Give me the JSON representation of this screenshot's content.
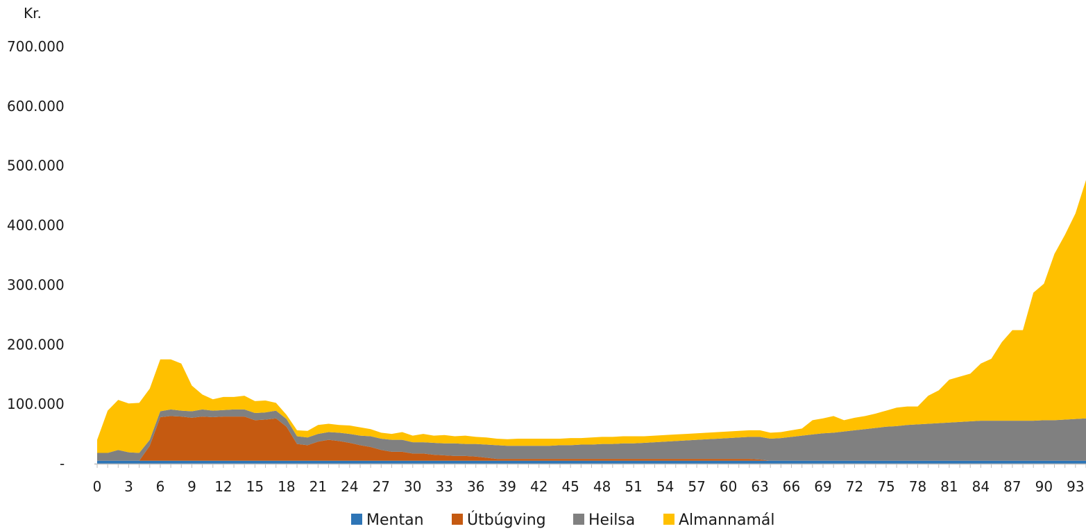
{
  "chart_data": {
    "type": "area",
    "stacked": true,
    "y_unit": "Kr.",
    "xlim": [
      0,
      94
    ],
    "ylim": [
      0,
      700000
    ],
    "y_ticks": [
      0,
      100000,
      200000,
      300000,
      400000,
      500000,
      600000,
      700000
    ],
    "y_tick_labels": [
      "-",
      "100.000",
      "200.000",
      "300.000",
      "400.000",
      "500.000",
      "600.000",
      "700.000"
    ],
    "x_ticks": [
      0,
      3,
      6,
      9,
      12,
      15,
      18,
      21,
      24,
      27,
      30,
      33,
      36,
      39,
      42,
      45,
      48,
      51,
      54,
      57,
      60,
      63,
      66,
      69,
      72,
      75,
      78,
      81,
      84,
      87,
      90,
      93
    ],
    "x_tick_labels": [
      "0",
      "3",
      "6",
      "9",
      "12",
      "15",
      "18",
      "21",
      "24",
      "27",
      "30",
      "33",
      "36",
      "39",
      "42",
      "45",
      "48",
      "51",
      "54",
      "57",
      "60",
      "63",
      "66",
      "69",
      "72",
      "75",
      "78",
      "81",
      "84",
      "87",
      "90",
      "93"
    ],
    "grid": false,
    "legend_position": "bottom",
    "x": [
      0,
      1,
      2,
      3,
      4,
      5,
      6,
      7,
      8,
      9,
      10,
      11,
      12,
      13,
      14,
      15,
      16,
      17,
      18,
      19,
      20,
      21,
      22,
      23,
      24,
      25,
      26,
      27,
      28,
      29,
      30,
      31,
      32,
      33,
      34,
      35,
      36,
      37,
      38,
      39,
      40,
      41,
      42,
      43,
      44,
      45,
      46,
      47,
      48,
      49,
      50,
      51,
      52,
      53,
      54,
      55,
      56,
      57,
      58,
      59,
      60,
      61,
      62,
      63,
      64,
      65,
      66,
      67,
      68,
      69,
      70,
      71,
      72,
      73,
      74,
      75,
      76,
      77,
      78,
      79,
      80,
      81,
      82,
      83,
      84,
      85,
      86,
      87,
      88,
      89,
      90,
      91,
      92,
      93,
      94
    ],
    "series": [
      {
        "name": "Mentan",
        "color": "#2e75b6",
        "values": [
          5000,
          5000,
          5000,
          5000,
          5000,
          5000,
          5000,
          5000,
          5000,
          5000,
          5000,
          5000,
          5000,
          5000,
          5000,
          5000,
          5000,
          5000,
          5000,
          5000,
          5000,
          5000,
          5000,
          5000,
          5000,
          5000,
          5000,
          5000,
          5000,
          5000,
          5000,
          5000,
          5000,
          5000,
          5000,
          5000,
          5000,
          5000,
          5000,
          5000,
          5000,
          5000,
          5000,
          5000,
          5000,
          5000,
          5000,
          5000,
          5000,
          5000,
          5000,
          5000,
          5000,
          5000,
          5000,
          5000,
          5000,
          5000,
          5000,
          5000,
          5000,
          5000,
          5000,
          5000,
          5000,
          5000,
          5000,
          5000,
          5000,
          5000,
          5000,
          5000,
          5000,
          5000,
          5000,
          5000,
          5000,
          5000,
          5000,
          5000,
          5000,
          5000,
          5000,
          5000,
          5000,
          5000,
          5000,
          5000,
          5000,
          5000,
          5000,
          5000,
          5000,
          5000,
          5000
        ]
      },
      {
        "name": "Útbúgving",
        "color": "#c55a11",
        "values": [
          0,
          0,
          0,
          0,
          0,
          25000,
          73000,
          75000,
          74000,
          72000,
          74000,
          73000,
          74000,
          74000,
          74000,
          68000,
          69000,
          71000,
          57000,
          28000,
          26000,
          32000,
          35000,
          33000,
          30000,
          26000,
          23000,
          18000,
          15000,
          15000,
          12000,
          12000,
          10000,
          9000,
          8000,
          8000,
          7000,
          5000,
          3000,
          3000,
          3000,
          3000,
          3000,
          3000,
          3000,
          3000,
          3000,
          3000,
          3000,
          3000,
          3000,
          3000,
          3000,
          3000,
          3000,
          3000,
          3000,
          3000,
          3000,
          3000,
          3000,
          3000,
          3000,
          2000,
          0,
          0,
          0,
          0,
          0,
          0,
          0,
          0,
          0,
          0,
          0,
          0,
          0,
          0,
          0,
          0,
          0,
          0,
          0,
          0,
          0,
          0,
          0,
          0,
          0,
          0,
          0,
          0,
          0,
          0,
          0
        ]
      },
      {
        "name": "Heilsa",
        "color": "#808080",
        "values": [
          13000,
          13000,
          18000,
          14000,
          13000,
          10000,
          10000,
          11000,
          10000,
          11000,
          12000,
          11000,
          11000,
          12000,
          12000,
          12000,
          12000,
          13000,
          13000,
          13000,
          13000,
          13000,
          13000,
          14000,
          15000,
          16000,
          18000,
          19000,
          20000,
          20000,
          19000,
          19000,
          20000,
          20000,
          21000,
          20000,
          21000,
          22000,
          23000,
          22000,
          22000,
          22000,
          22000,
          22000,
          23000,
          23000,
          24000,
          24000,
          25000,
          25000,
          26000,
          26000,
          27000,
          28000,
          29000,
          30000,
          31000,
          32000,
          33000,
          34000,
          35000,
          36000,
          37000,
          38000,
          37000,
          38000,
          40000,
          42000,
          44000,
          46000,
          47000,
          49000,
          51000,
          53000,
          55000,
          57000,
          58000,
          60000,
          61000,
          62000,
          63000,
          64000,
          65000,
          66000,
          67000,
          67000,
          67000,
          67000,
          67000,
          67000,
          68000,
          68000,
          69000,
          70000,
          71000
        ]
      },
      {
        "name": "Almannamál",
        "color": "#ffc000",
        "values": [
          22000,
          71000,
          84000,
          82000,
          84000,
          86000,
          87000,
          84000,
          79000,
          43000,
          25000,
          19000,
          22000,
          21000,
          23000,
          20000,
          20000,
          13000,
          7000,
          10000,
          11000,
          15000,
          14000,
          13000,
          14000,
          14000,
          12000,
          10000,
          10000,
          13000,
          11000,
          14000,
          12000,
          14000,
          12000,
          14000,
          12000,
          12000,
          11000,
          11000,
          12000,
          12000,
          12000,
          12000,
          11000,
          12000,
          11000,
          12000,
          12000,
          12000,
          12000,
          12000,
          11000,
          11000,
          11000,
          11000,
          11000,
          11000,
          11000,
          11000,
          11000,
          11000,
          11000,
          11000,
          10000,
          10000,
          11000,
          12000,
          24000,
          25000,
          28000,
          19000,
          21000,
          22000,
          24000,
          27000,
          31000,
          31000,
          30000,
          47000,
          55000,
          72000,
          76000,
          80000,
          96000,
          104000,
          132000,
          152000,
          152000,
          215000,
          229000,
          279000,
          310000,
          345000,
          400000
        ]
      }
    ]
  }
}
